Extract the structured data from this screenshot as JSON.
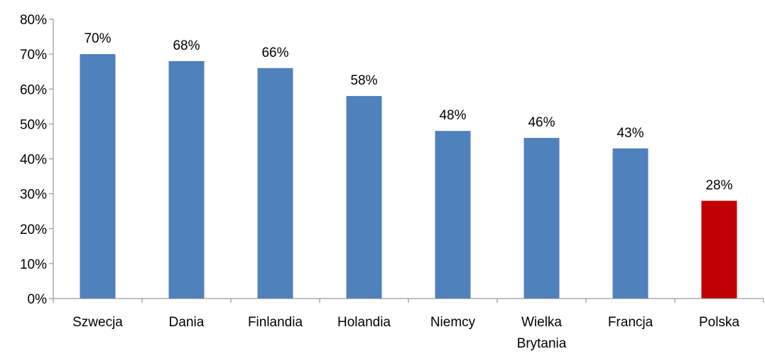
{
  "chart_data": {
    "type": "bar",
    "title": "",
    "xlabel": "",
    "ylabel": "",
    "categories": [
      [
        "Szwecja"
      ],
      [
        "Dania"
      ],
      [
        "Finlandia"
      ],
      [
        "Holandia"
      ],
      [
        "Niemcy"
      ],
      [
        "Wielka",
        "Brytania"
      ],
      [
        "Francja"
      ],
      [
        "Polska"
      ]
    ],
    "values": [
      70,
      68,
      66,
      58,
      48,
      46,
      43,
      28
    ],
    "data_labels": [
      "70%",
      "68%",
      "66%",
      "58%",
      "48%",
      "46%",
      "43%",
      "28%"
    ],
    "y_ticks": [
      "0%",
      "10%",
      "20%",
      "30%",
      "40%",
      "50%",
      "60%",
      "70%",
      "80%"
    ],
    "ylim": [
      0,
      80
    ],
    "grid": false,
    "legend": "none",
    "colors": {
      "default_bar": "#4F81BD",
      "highlight_bar": "#C00000",
      "highlight_index": 7,
      "axis": "#868686",
      "text": "#000000"
    }
  }
}
